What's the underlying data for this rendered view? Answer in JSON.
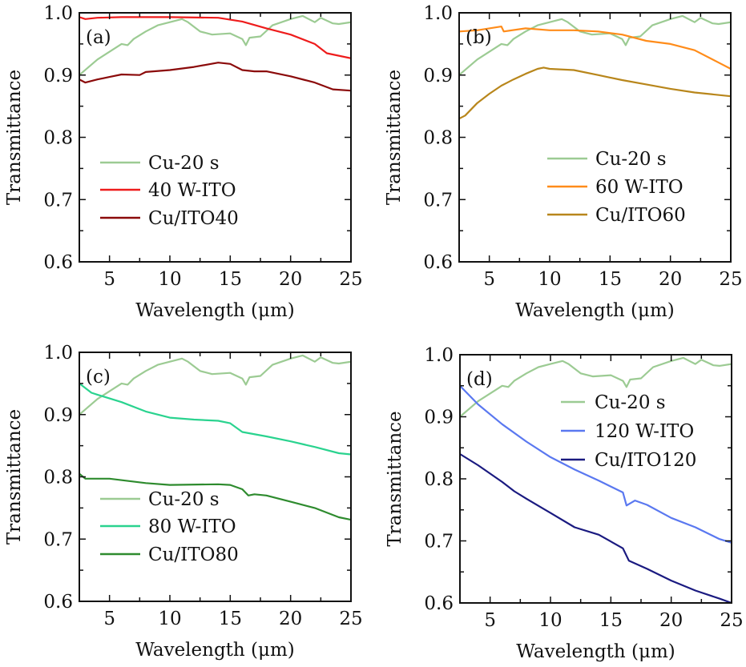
{
  "chart_data": [
    {
      "type": "line",
      "panel_label": "(a)",
      "xlabel": "Wavelength (μm)",
      "ylabel": "Transmittance",
      "xlim": [
        2.5,
        25
      ],
      "ylim": [
        0.6,
        1.0
      ],
      "xticks": [
        "5",
        "10",
        "15",
        "20",
        "25"
      ],
      "yticks": [
        "0.6",
        "0.7",
        "0.8",
        "0.9",
        "1.0"
      ],
      "legend_position": "center-left",
      "series": [
        {
          "name": "Cu-20 s",
          "color": "#9ccb93",
          "x": [
            2.5,
            4,
            6,
            6.5,
            7,
            8,
            9,
            10,
            11,
            11.5,
            12.5,
            13.5,
            15,
            16,
            16.3,
            16.6,
            17.5,
            18.5,
            20,
            21,
            21.5,
            22,
            22.5,
            23.5,
            24,
            25
          ],
          "y": [
            0.9,
            0.925,
            0.95,
            0.948,
            0.958,
            0.97,
            0.98,
            0.985,
            0.99,
            0.985,
            0.97,
            0.965,
            0.967,
            0.958,
            0.948,
            0.96,
            0.962,
            0.98,
            0.99,
            0.995,
            0.99,
            0.985,
            0.992,
            0.983,
            0.982,
            0.985
          ]
        },
        {
          "name": "40 W-ITO",
          "color": "#ee1c1c",
          "x": [
            2.5,
            3,
            4,
            6,
            10,
            14,
            16,
            18,
            20,
            22,
            23,
            25
          ],
          "y": [
            0.993,
            0.99,
            0.992,
            0.993,
            0.993,
            0.992,
            0.986,
            0.975,
            0.965,
            0.95,
            0.935,
            0.927
          ]
        },
        {
          "name": "Cu/ITO40",
          "color": "#8b0a0a",
          "x": [
            2.5,
            3,
            4,
            5,
            6,
            7.5,
            8,
            10,
            12,
            14,
            15,
            16,
            17,
            18,
            20,
            22,
            23.5,
            25
          ],
          "y": [
            0.893,
            0.888,
            0.893,
            0.897,
            0.901,
            0.9,
            0.905,
            0.908,
            0.913,
            0.92,
            0.918,
            0.908,
            0.906,
            0.906,
            0.898,
            0.888,
            0.877,
            0.875
          ]
        }
      ]
    },
    {
      "type": "line",
      "panel_label": "(b)",
      "xlabel": "Wavelength (μm)",
      "ylabel": "Transmittance",
      "xlim": [
        2.5,
        25
      ],
      "ylim": [
        0.6,
        1.0
      ],
      "xticks": [
        "5",
        "10",
        "15",
        "20",
        "25"
      ],
      "yticks": [
        "0.6",
        "0.7",
        "0.8",
        "0.9",
        "1.0"
      ],
      "legend_position": "center-right",
      "series": [
        {
          "name": "Cu-20 s",
          "color": "#9ccb93",
          "x": [
            2.5,
            4,
            6,
            6.5,
            7,
            8,
            9,
            10,
            11,
            11.5,
            12.5,
            13.5,
            15,
            16,
            16.3,
            16.6,
            17.5,
            18.5,
            20,
            21,
            21.5,
            22,
            22.5,
            23.5,
            24,
            25
          ],
          "y": [
            0.9,
            0.925,
            0.95,
            0.948,
            0.958,
            0.97,
            0.98,
            0.985,
            0.99,
            0.985,
            0.97,
            0.965,
            0.967,
            0.958,
            0.948,
            0.96,
            0.962,
            0.98,
            0.99,
            0.995,
            0.99,
            0.985,
            0.992,
            0.983,
            0.982,
            0.985
          ]
        },
        {
          "name": "60 W-ITO",
          "color": "#ff8c1a",
          "x": [
            2.5,
            4,
            6,
            6.2,
            8,
            10,
            12,
            14,
            16,
            18,
            20,
            22,
            24,
            25
          ],
          "y": [
            0.97,
            0.972,
            0.978,
            0.97,
            0.975,
            0.972,
            0.972,
            0.97,
            0.965,
            0.955,
            0.95,
            0.94,
            0.92,
            0.91
          ]
        },
        {
          "name": "Cu/ITO60",
          "color": "#b8861b",
          "x": [
            2.5,
            3,
            4,
            5,
            6,
            7,
            8,
            9,
            9.5,
            10,
            12,
            14,
            16,
            18,
            20,
            22,
            25
          ],
          "y": [
            0.83,
            0.835,
            0.855,
            0.87,
            0.883,
            0.893,
            0.902,
            0.91,
            0.912,
            0.91,
            0.908,
            0.9,
            0.892,
            0.885,
            0.878,
            0.872,
            0.866
          ]
        }
      ]
    },
    {
      "type": "line",
      "panel_label": "(c)",
      "xlabel": "Wavelength (μm)",
      "ylabel": "Transmittance",
      "xlim": [
        2.5,
        25
      ],
      "ylim": [
        0.6,
        1.0
      ],
      "xticks": [
        "5",
        "10",
        "15",
        "20",
        "25"
      ],
      "yticks": [
        "0.6",
        "0.7",
        "0.8",
        "0.9",
        "1.0"
      ],
      "legend_position": "bottom-left",
      "series": [
        {
          "name": "Cu-20 s",
          "color": "#9ccb93",
          "x": [
            2.5,
            4,
            6,
            6.5,
            7,
            8,
            9,
            10,
            11,
            11.5,
            12.5,
            13.5,
            15,
            16,
            16.3,
            16.6,
            17.5,
            18.5,
            20,
            21,
            21.5,
            22,
            22.5,
            23.5,
            24,
            25
          ],
          "y": [
            0.9,
            0.925,
            0.95,
            0.948,
            0.958,
            0.97,
            0.98,
            0.985,
            0.99,
            0.985,
            0.97,
            0.965,
            0.967,
            0.958,
            0.948,
            0.96,
            0.962,
            0.98,
            0.99,
            0.995,
            0.99,
            0.985,
            0.992,
            0.983,
            0.982,
            0.985
          ]
        },
        {
          "name": "80 W-ITO",
          "color": "#2ad38f",
          "x": [
            2.5,
            3.5,
            4,
            6,
            8,
            10,
            12,
            14,
            15,
            16,
            18,
            20,
            22,
            24,
            25
          ],
          "y": [
            0.95,
            0.935,
            0.932,
            0.92,
            0.905,
            0.895,
            0.892,
            0.89,
            0.886,
            0.872,
            0.865,
            0.857,
            0.848,
            0.838,
            0.836
          ]
        },
        {
          "name": "Cu/ITO80",
          "color": "#2e8b2e",
          "x": [
            2.5,
            3,
            5,
            8,
            10,
            14,
            15,
            16,
            16.5,
            17,
            18,
            20,
            22,
            24,
            25
          ],
          "y": [
            0.805,
            0.797,
            0.797,
            0.79,
            0.787,
            0.788,
            0.787,
            0.78,
            0.77,
            0.772,
            0.77,
            0.76,
            0.75,
            0.735,
            0.731
          ]
        }
      ]
    },
    {
      "type": "line",
      "panel_label": "(d)",
      "xlabel": "Wavelength (μm)",
      "ylabel": "Transmittance",
      "xlim": [
        2.5,
        25
      ],
      "ylim": [
        0.6,
        1.0
      ],
      "xticks": [
        "5",
        "10",
        "15",
        "20",
        "25"
      ],
      "yticks": [
        "0.6",
        "0.7",
        "0.8",
        "0.9",
        "1.0"
      ],
      "legend_position": "top-right",
      "series": [
        {
          "name": "Cu-20 s",
          "color": "#9ccb93",
          "x": [
            2.5,
            4,
            6,
            6.5,
            7,
            8,
            9,
            10,
            11,
            11.5,
            12.5,
            13.5,
            15,
            16,
            16.3,
            16.6,
            17.5,
            18.5,
            20,
            21,
            21.5,
            22,
            22.5,
            23.5,
            24,
            25
          ],
          "y": [
            0.9,
            0.925,
            0.95,
            0.948,
            0.958,
            0.97,
            0.98,
            0.985,
            0.99,
            0.985,
            0.97,
            0.965,
            0.967,
            0.958,
            0.948,
            0.96,
            0.962,
            0.98,
            0.99,
            0.995,
            0.99,
            0.985,
            0.992,
            0.983,
            0.982,
            0.985
          ]
        },
        {
          "name": "120 W-ITO",
          "color": "#5a78f0",
          "x": [
            2.5,
            4,
            6,
            8,
            10,
            12,
            14,
            16,
            16.3,
            17,
            18,
            20,
            22,
            24,
            25
          ],
          "y": [
            0.95,
            0.92,
            0.888,
            0.86,
            0.835,
            0.815,
            0.797,
            0.778,
            0.757,
            0.765,
            0.758,
            0.737,
            0.722,
            0.703,
            0.697
          ]
        },
        {
          "name": "Cu/ITO120",
          "color": "#1a1a80",
          "x": [
            2.5,
            4,
            6,
            7,
            8,
            10,
            12,
            14,
            16,
            16.5,
            18,
            20,
            22,
            24,
            25
          ],
          "y": [
            0.84,
            0.822,
            0.795,
            0.78,
            0.768,
            0.745,
            0.722,
            0.71,
            0.688,
            0.668,
            0.655,
            0.636,
            0.62,
            0.607,
            0.6
          ]
        }
      ]
    }
  ]
}
